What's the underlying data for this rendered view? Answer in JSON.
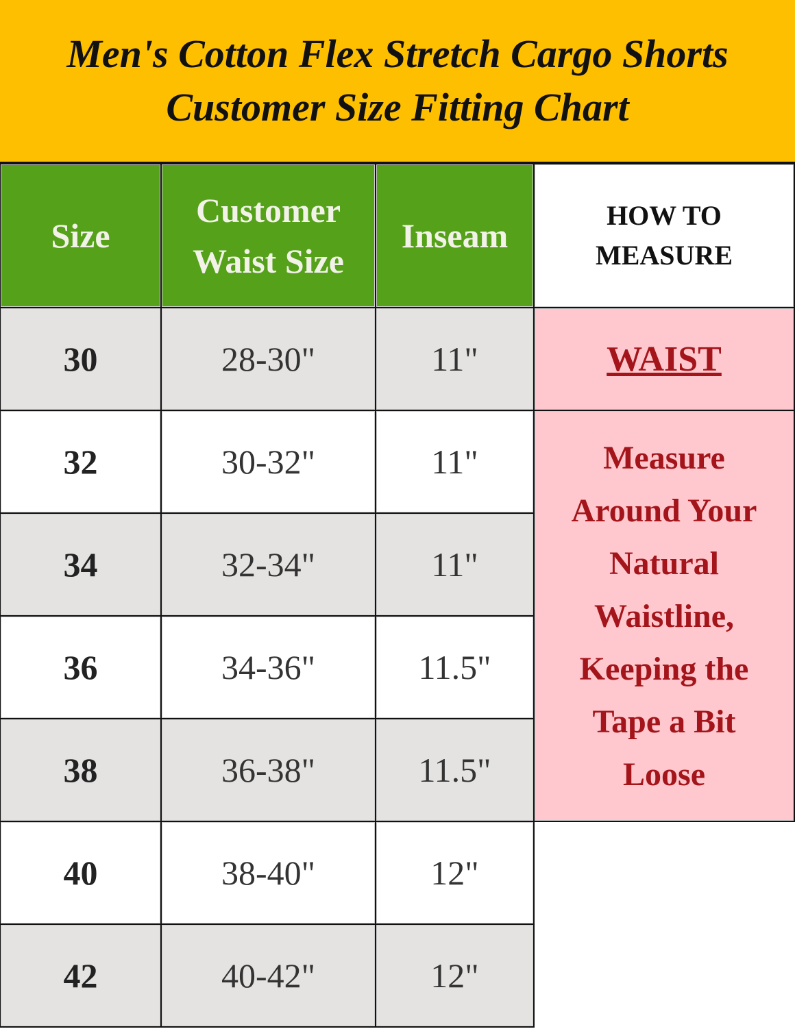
{
  "title": {
    "line1": "Men's Cotton Flex Stretch Cargo Shorts",
    "line2": "Customer Size Fitting Chart"
  },
  "headers": {
    "size": "Size",
    "waist": "Customer Waist Size",
    "inseam": "Inseam",
    "how_to": "HOW TO MEASURE"
  },
  "rows": [
    {
      "size": "30",
      "waist": "28-30\"",
      "inseam": "11\""
    },
    {
      "size": "32",
      "waist": "30-32\"",
      "inseam": "11\""
    },
    {
      "size": "34",
      "waist": "32-34\"",
      "inseam": "11\""
    },
    {
      "size": "36",
      "waist": "34-36\"",
      "inseam": "11.5\""
    },
    {
      "size": "38",
      "waist": "36-38\"",
      "inseam": "11.5\""
    },
    {
      "size": "40",
      "waist": "38-40\"",
      "inseam": "12\""
    },
    {
      "size": "42",
      "waist": "40-42\"",
      "inseam": "12\""
    }
  ],
  "measure": {
    "label": "WAIST",
    "description": "Measure Around Your Natural Waistline, Keeping the Tape a Bit Loose"
  },
  "colors": {
    "title_bg": "#FDBF00",
    "header_bg": "#55A11A",
    "row_alt_bg": "#E4E3E1",
    "measure_bg": "#FFC7CE",
    "measure_text": "#A3151A"
  }
}
